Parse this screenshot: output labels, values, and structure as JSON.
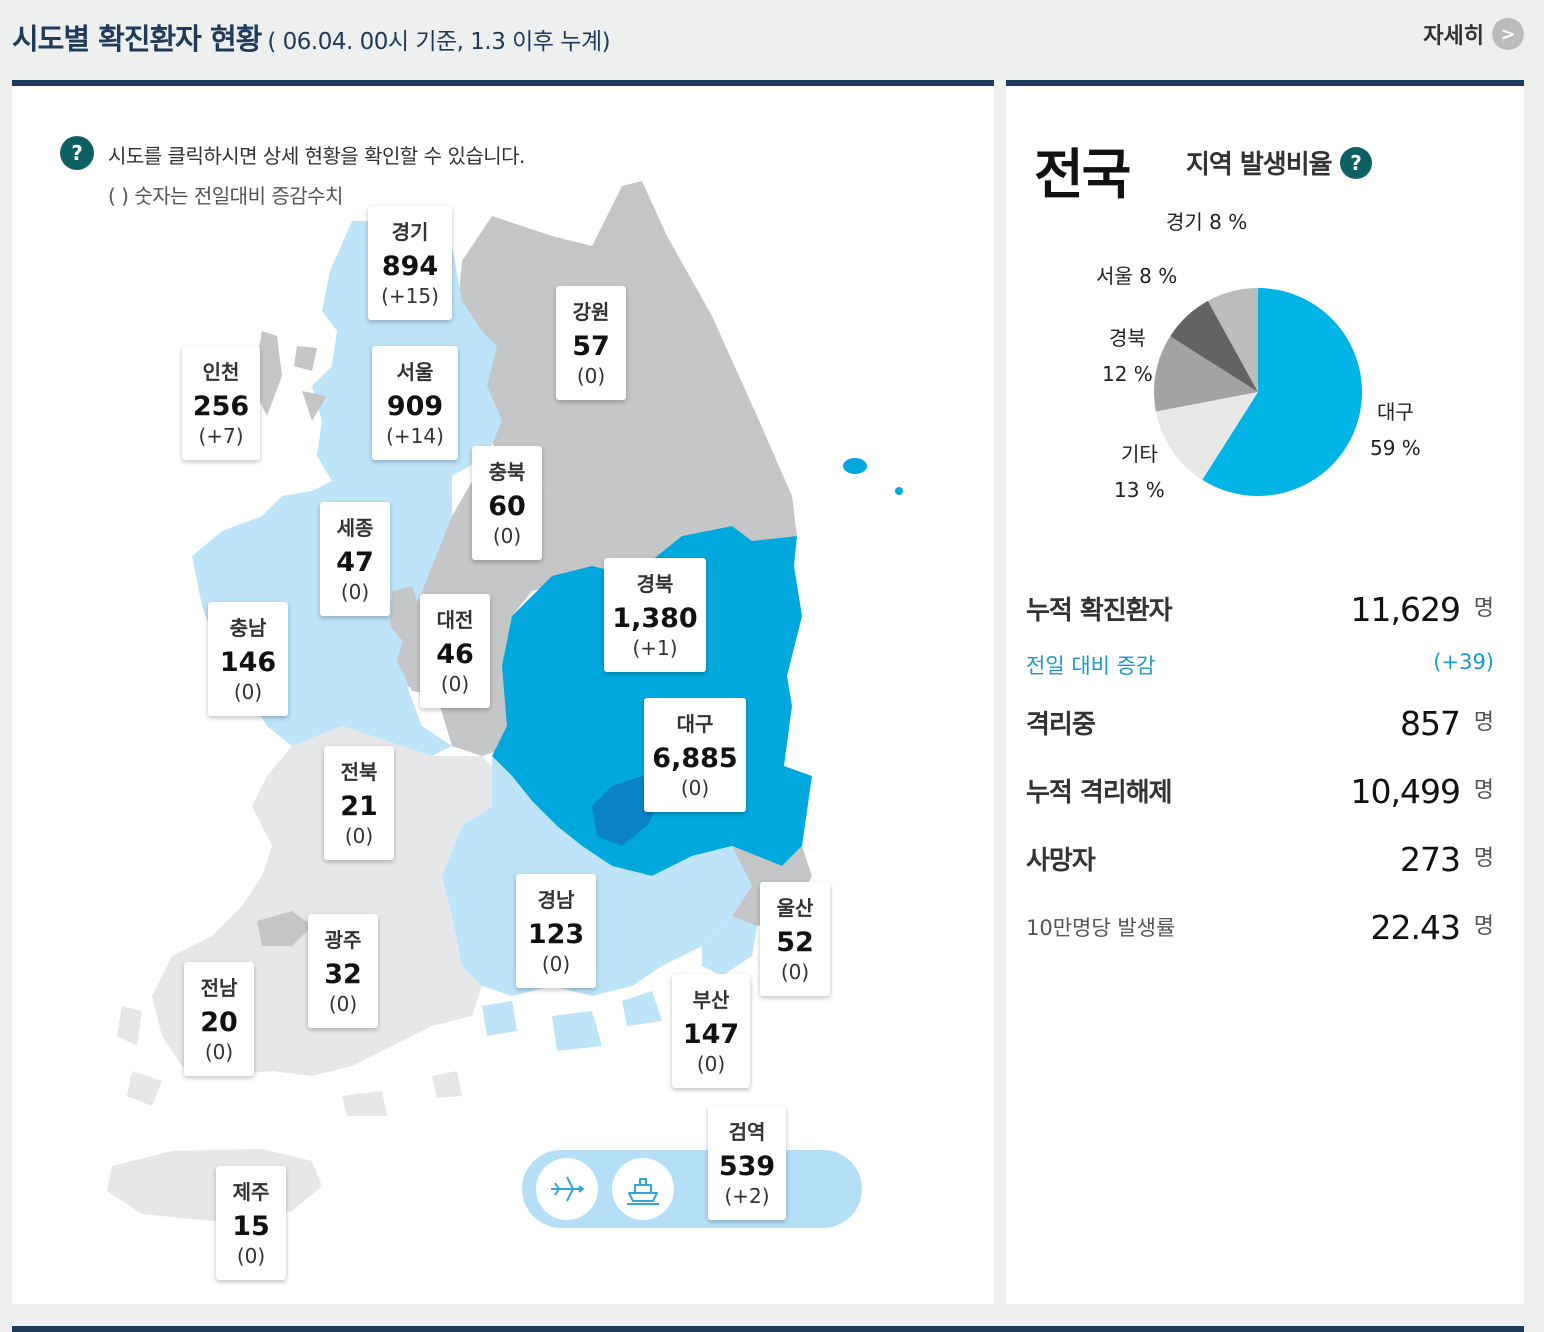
{
  "header": {
    "title": "시도별 확진환자 현황",
    "subtitle": "( 06.04. 00시 기준, 1.3 이후 누계)",
    "more_label": "자세히",
    "more_icon": ">"
  },
  "map": {
    "help_icon": "?",
    "notice_line1": "시도를 클릭하시면 상세 현황을 확인할 수 있습니다.",
    "notice_line2": "( ) 숫자는 전일대비 증감수치",
    "colors": {
      "high": "#00a8de",
      "mid": "#bde4f9",
      "low": "#e6e7e8",
      "gray": "#c5c6c7",
      "daegu": "#0a84c6"
    },
    "regions": {
      "gyeonggi": {
        "name": "경기",
        "count": "894",
        "change": "(+15)"
      },
      "gangwon": {
        "name": "강원",
        "count": "57",
        "change": "(0)"
      },
      "incheon": {
        "name": "인천",
        "count": "256",
        "change": "(+7)"
      },
      "seoul": {
        "name": "서울",
        "count": "909",
        "change": "(+14)"
      },
      "chungbuk": {
        "name": "충북",
        "count": "60",
        "change": "(0)"
      },
      "sejong": {
        "name": "세종",
        "count": "47",
        "change": "(0)"
      },
      "gyeongbuk": {
        "name": "경북",
        "count": "1,380",
        "change": "(+1)"
      },
      "chungnam": {
        "name": "충남",
        "count": "146",
        "change": "(0)"
      },
      "daejeon": {
        "name": "대전",
        "count": "46",
        "change": "(0)"
      },
      "daegu": {
        "name": "대구",
        "count": "6,885",
        "change": "(0)"
      },
      "jeonbuk": {
        "name": "전북",
        "count": "21",
        "change": "(0)"
      },
      "gyeongnam": {
        "name": "경남",
        "count": "123",
        "change": "(0)"
      },
      "ulsan": {
        "name": "울산",
        "count": "52",
        "change": "(0)"
      },
      "gwangju": {
        "name": "광주",
        "count": "32",
        "change": "(0)"
      },
      "jeonnam": {
        "name": "전남",
        "count": "20",
        "change": "(0)"
      },
      "busan": {
        "name": "부산",
        "count": "147",
        "change": "(0)"
      },
      "quarantine": {
        "name": "검역",
        "count": "539",
        "change": "(+2)"
      },
      "jeju": {
        "name": "제주",
        "count": "15",
        "change": "(0)"
      }
    },
    "transport_icons": [
      "airplane-icon",
      "ship-icon"
    ]
  },
  "summary": {
    "nation_title": "전국",
    "ratio_title": "지역 발생비율",
    "ratio_help": "?",
    "pie_labels": {
      "daegu_name": "대구",
      "daegu_pct": "59 %",
      "other_name": "기타",
      "other_pct": "13 %",
      "gyeongbuk_name": "경북",
      "gyeongbuk_pct": "12 %",
      "seoul": "서울 8 %",
      "gyeonggi": "경기 8 %"
    },
    "stats": {
      "confirmed_label": "누적 확진환자",
      "confirmed_value": "11,629",
      "unit": "명",
      "change_label": "전일 대비 증감",
      "change_value": "(+39)",
      "isolated_label": "격리중",
      "isolated_value": "857",
      "released_label": "누적 격리해제",
      "released_value": "10,499",
      "deaths_label": "사망자",
      "deaths_value": "273",
      "rate_label": "10만명당 발생률",
      "rate_value": "22.43"
    }
  },
  "chart_data": {
    "type": "pie",
    "title": "지역 발생비율",
    "categories": [
      "대구",
      "기타",
      "경북",
      "서울",
      "경기"
    ],
    "values": [
      59,
      13,
      12,
      8,
      8
    ],
    "colors": [
      "#00b5e6",
      "#e8e8e8",
      "#a3a3a3",
      "#636363",
      "#bdbdbd"
    ],
    "unit": "%"
  }
}
